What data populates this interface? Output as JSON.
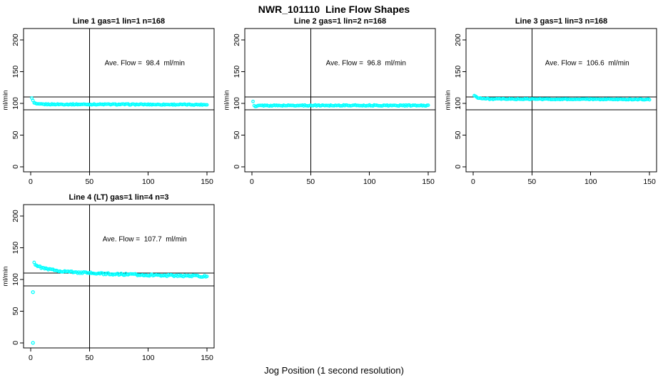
{
  "page": {
    "main_title": "NWR_101110  Line Flow Shapes",
    "shared_xlabel": "Jog Position (1 second resolution)",
    "background_color": "#FFFFFF",
    "axis_color": "#000000",
    "marker_color": "#00FFFF"
  },
  "layout_hints": {
    "grid": "2 rows x 3 cols, 4 panels used",
    "legend": "none",
    "gridlines": "off",
    "marker": "open-circle"
  },
  "chart_data": [
    {
      "type": "scatter",
      "title": "Line 1 gas=1 lin=1 n=168",
      "ylabel": "ml/min",
      "annotation": "Ave. Flow =  98.4  ml/min",
      "ave_flow_ml_min": 98.4,
      "n": 168,
      "x_ticks": [
        0,
        50,
        100,
        150
      ],
      "y_ticks": [
        0,
        50,
        100,
        150,
        200
      ],
      "xlim": [
        -6,
        156
      ],
      "ylim": [
        -8,
        218
      ],
      "vline_x": 50,
      "hlines_y": [
        90,
        110
      ],
      "marker_color": "#00FFFF",
      "n_points": 150,
      "noise_amplitude": 0.8,
      "series_anchors": [
        [
          1,
          109
        ],
        [
          2,
          104
        ],
        [
          3,
          100.5
        ],
        [
          6,
          98.5
        ],
        [
          80,
          98.3
        ],
        [
          150,
          97.9
        ]
      ],
      "outliers": []
    },
    {
      "type": "scatter",
      "title": "Line 2 gas=1 lin=2 n=168",
      "ylabel": "ml/min",
      "annotation": "Ave. Flow =  96.8  ml/min",
      "ave_flow_ml_min": 96.8,
      "n": 168,
      "x_ticks": [
        0,
        50,
        100,
        150
      ],
      "y_ticks": [
        0,
        50,
        100,
        150,
        200
      ],
      "xlim": [
        -6,
        156
      ],
      "ylim": [
        -8,
        218
      ],
      "vline_x": 50,
      "hlines_y": [
        90,
        110
      ],
      "marker_color": "#00FFFF",
      "n_points": 150,
      "noise_amplitude": 0.8,
      "series_anchors": [
        [
          1,
          103
        ],
        [
          2,
          96
        ],
        [
          3,
          94.5
        ],
        [
          6,
          96.5
        ],
        [
          80,
          96.8
        ],
        [
          150,
          96.5
        ]
      ],
      "outliers": []
    },
    {
      "type": "scatter",
      "title": "Line 3 gas=1 lin=3 n=168",
      "ylabel": "ml/min",
      "annotation": "Ave. Flow =  106.6  ml/min",
      "ave_flow_ml_min": 106.6,
      "n": 168,
      "x_ticks": [
        0,
        50,
        100,
        150
      ],
      "y_ticks": [
        0,
        50,
        100,
        150,
        200
      ],
      "xlim": [
        -6,
        156
      ],
      "ylim": [
        -8,
        218
      ],
      "vline_x": 50,
      "hlines_y": [
        90,
        110
      ],
      "marker_color": "#00FFFF",
      "n_points": 150,
      "noise_amplitude": 0.7,
      "series_anchors": [
        [
          1,
          112.5
        ],
        [
          2,
          111
        ],
        [
          4,
          109
        ],
        [
          8,
          107.5
        ],
        [
          15,
          106.8
        ],
        [
          80,
          106.5
        ],
        [
          150,
          106.2
        ]
      ],
      "outliers": []
    },
    {
      "type": "scatter",
      "title": "Line 4 (LT) gas=1 lin=4 n=3",
      "ylabel": "ml/min",
      "annotation": "Ave. Flow =  107.7  ml/min",
      "ave_flow_ml_min": 107.7,
      "n": 3,
      "x_ticks": [
        0,
        50,
        100,
        150
      ],
      "y_ticks": [
        0,
        50,
        100,
        150,
        200
      ],
      "xlim": [
        -6,
        156
      ],
      "ylim": [
        -8,
        218
      ],
      "vline_x": 50,
      "hlines_y": [
        90,
        110
      ],
      "marker_color": "#00FFFF",
      "n_points": 148,
      "noise_amplitude": 1.4,
      "series_anchors": [
        [
          3,
          127
        ],
        [
          4,
          124
        ],
        [
          6,
          121
        ],
        [
          10,
          118
        ],
        [
          15,
          116
        ],
        [
          25,
          113.5
        ],
        [
          40,
          111
        ],
        [
          55,
          109.5
        ],
        [
          75,
          108.2
        ],
        [
          100,
          107
        ],
        [
          125,
          106
        ],
        [
          150,
          105
        ]
      ],
      "outliers": [
        [
          2,
          0
        ],
        [
          2,
          80
        ]
      ]
    }
  ]
}
